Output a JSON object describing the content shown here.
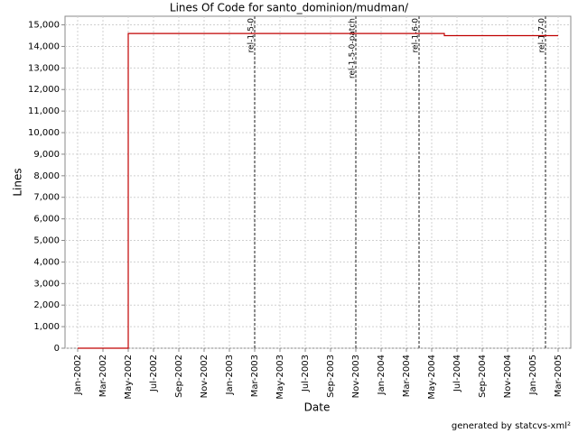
{
  "chart_data": {
    "type": "line",
    "title": "Lines Of Code for santo_dominion/mudman/",
    "x_label": "Date",
    "y_label": "Lines",
    "footer": "generated by statcvs-xml²",
    "x": [
      "2002-01",
      "2002-05",
      "2002-05",
      "2004-06",
      "2004-06",
      "2005-03"
    ],
    "series": [
      {
        "color": "#c00000",
        "values": [
          0,
          0,
          14600,
          14600,
          14500,
          14500
        ]
      }
    ],
    "xlim": [
      "2001-12",
      "2005-04"
    ],
    "xticks": [
      {
        "value": "2002-01",
        "label": "Jan-2002"
      },
      {
        "value": "2002-03",
        "label": "Mar-2002"
      },
      {
        "value": "2002-05",
        "label": "May-2002"
      },
      {
        "value": "2002-07",
        "label": "Jul-2002"
      },
      {
        "value": "2002-09",
        "label": "Sep-2002"
      },
      {
        "value": "2002-11",
        "label": "Nov-2002"
      },
      {
        "value": "2003-01",
        "label": "Jan-2003"
      },
      {
        "value": "2003-03",
        "label": "Mar-2003"
      },
      {
        "value": "2003-05",
        "label": "May-2003"
      },
      {
        "value": "2003-07",
        "label": "Jul-2003"
      },
      {
        "value": "2003-09",
        "label": "Sep-2003"
      },
      {
        "value": "2003-11",
        "label": "Nov-2003"
      },
      {
        "value": "2004-01",
        "label": "Jan-2004"
      },
      {
        "value": "2004-03",
        "label": "Mar-2004"
      },
      {
        "value": "2004-05",
        "label": "May-2004"
      },
      {
        "value": "2004-07",
        "label": "Jul-2004"
      },
      {
        "value": "2004-09",
        "label": "Sep-2004"
      },
      {
        "value": "2004-11",
        "label": "Nov-2004"
      },
      {
        "value": "2005-01",
        "label": "Jan-2005"
      },
      {
        "value": "2005-03",
        "label": "Mar-2005"
      }
    ],
    "ylim": [
      0,
      15400
    ],
    "yticks": [
      0,
      {
        "value": 1000,
        "label": "1,000"
      },
      {
        "value": 2000,
        "label": "2,000"
      },
      {
        "value": 3000,
        "label": "3,000"
      },
      {
        "value": 4000,
        "label": "4,000"
      },
      {
        "value": 5000,
        "label": "5,000"
      },
      {
        "value": 6000,
        "label": "6,000"
      },
      {
        "value": 7000,
        "label": "7,000"
      },
      {
        "value": 8000,
        "label": "8,000"
      },
      {
        "value": 9000,
        "label": "9,000"
      },
      {
        "value": 10000,
        "label": "10,000"
      },
      {
        "value": 11000,
        "label": "11,000"
      },
      {
        "value": 12000,
        "label": "12,000"
      },
      {
        "value": 13000,
        "label": "13,000"
      },
      {
        "value": 14000,
        "label": "14,000"
      },
      {
        "value": 15000,
        "label": "15,000"
      }
    ],
    "annotations": [
      {
        "x": "2003-03",
        "label": "rel-1-5-0"
      },
      {
        "x": "2003-11",
        "label": "rel-1-5-0-patch"
      },
      {
        "x": "2004-04",
        "label": "rel-1-6-0"
      },
      {
        "x": "2005-02",
        "label": "rel-1-7-0"
      }
    ],
    "grid": true
  }
}
